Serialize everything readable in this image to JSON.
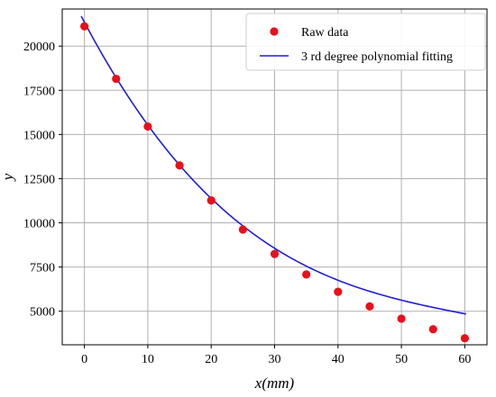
{
  "chart_data": {
    "type": "scatter",
    "xlabel": "x(mm)",
    "ylabel": "y",
    "xlim": [
      -3.5,
      63.5
    ],
    "ylim": [
      3100,
      22100
    ],
    "xticks": [
      0,
      10,
      20,
      30,
      40,
      50,
      60
    ],
    "yticks": [
      5000,
      7500,
      10000,
      12500,
      15000,
      17500,
      20000
    ],
    "grid": true,
    "legend_position": "top-right",
    "series": [
      {
        "name": "Raw data",
        "kind": "scatter",
        "color": "#e8101b",
        "x": [
          0,
          5,
          10,
          15,
          20,
          25,
          30,
          35,
          40,
          45,
          50,
          55,
          60
        ],
        "y": [
          21120,
          18150,
          15450,
          13250,
          11270,
          9620,
          8240,
          7080,
          6100,
          5270,
          4580,
          3980,
          3470
        ]
      },
      {
        "name": "3 rd degree polynomial fitting",
        "kind": "line",
        "color": "#1f1fd6",
        "coefficients": [
          21350,
          -675.5,
          9.94,
          -0.0544
        ],
        "x_range": [
          -0.5,
          60.2
        ]
      }
    ]
  }
}
